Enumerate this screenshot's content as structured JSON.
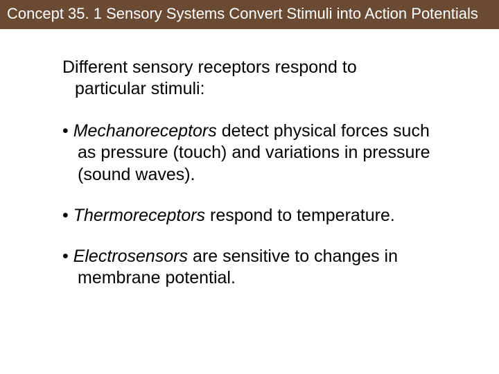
{
  "header": {
    "title": "Concept 35. 1 Sensory Systems Convert Stimuli into Action Potentials",
    "background_color": "#6b4a33",
    "text_color": "#ffffff",
    "font_size": 22
  },
  "content": {
    "intro_line1": "Different sensory receptors respond to",
    "intro_line2": "particular stimuli:",
    "bullets": [
      {
        "term": "Mechanoreceptors",
        "rest": " detect physical forces such as pressure (touch) and variations in pressure (sound waves)."
      },
      {
        "term": "Thermoreceptors",
        "rest": " respond to temperature."
      },
      {
        "term": "Electrosensors",
        "rest": " are sensitive to changes in membrane potential."
      }
    ],
    "body_font_size": 25,
    "body_text_color": "#000000",
    "background_color": "#ffffff"
  }
}
